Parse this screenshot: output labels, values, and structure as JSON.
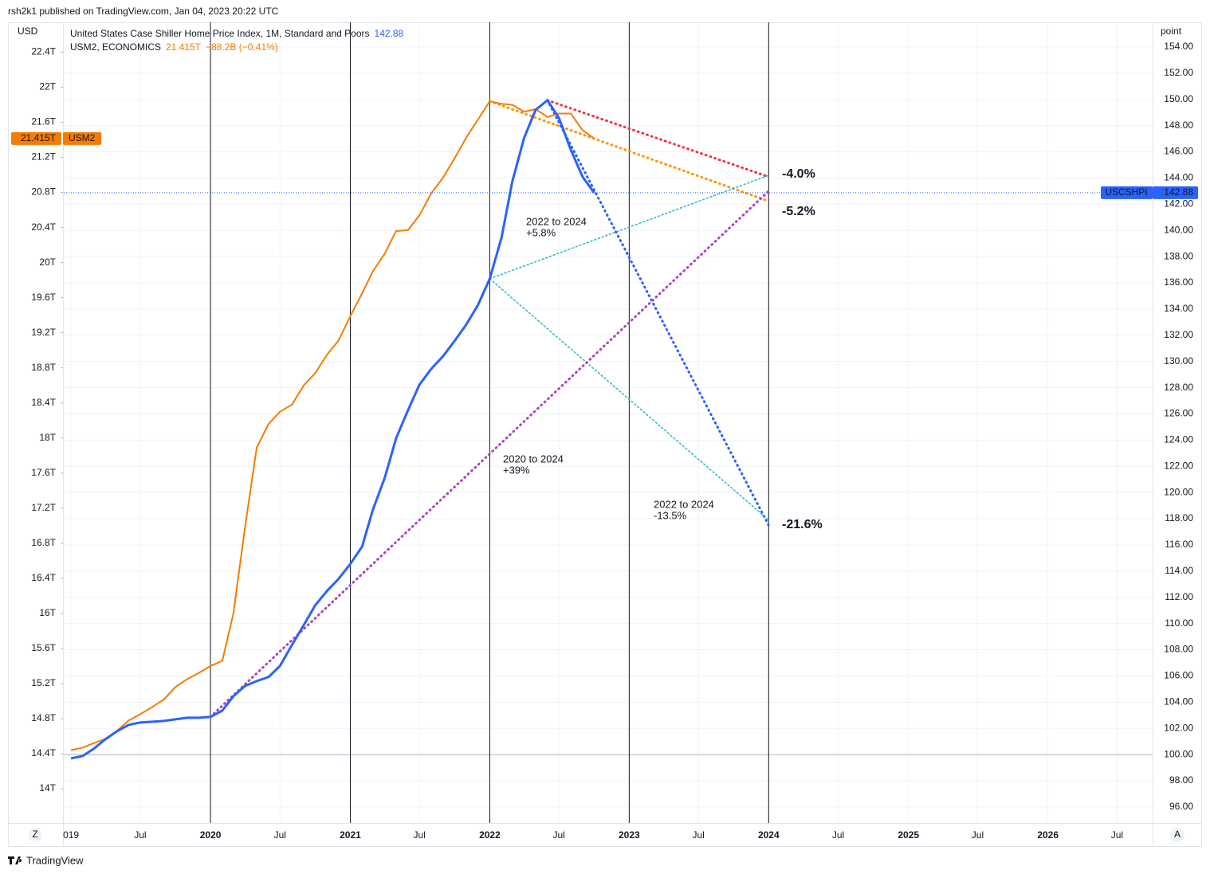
{
  "header": "rsh2k1 published on TradingView.com, Jan 04, 2023 20:22 UTC",
  "footer": "TradingView",
  "ui": {
    "left_button": "Z",
    "right_button": "A"
  },
  "chart_data": {
    "type": "line",
    "ylabel": "USD",
    "y2label": "point",
    "xlim": [
      "2018-12-13",
      "2026-10-02"
    ],
    "xticks": [
      {
        "value": "2019-01",
        "label": "019"
      },
      {
        "value": "2019-07",
        "label": "Jul"
      },
      {
        "value": "2020-01",
        "label": "2020"
      },
      {
        "value": "2020-07",
        "label": "Jul"
      },
      {
        "value": "2021-01",
        "label": "2021"
      },
      {
        "value": "2021-07",
        "label": "Jul"
      },
      {
        "value": "2022-01",
        "label": "2022"
      },
      {
        "value": "2022-07",
        "label": "Jul"
      },
      {
        "value": "2023-01",
        "label": "2023"
      },
      {
        "value": "2023-07",
        "label": "Jul"
      },
      {
        "value": "2024-01",
        "label": "2024"
      },
      {
        "value": "2024-07",
        "label": "Jul"
      },
      {
        "value": "2025-01",
        "label": "2025"
      },
      {
        "value": "2025-07",
        "label": "Jul"
      },
      {
        "value": "2026-01",
        "label": "2026"
      },
      {
        "value": "2026-07",
        "label": "Jul"
      }
    ],
    "ylim": [
      13.61,
      22.74
    ],
    "yticks": [
      {
        "value": 14,
        "label": "14T"
      },
      {
        "value": 14.4,
        "label": "14.4T"
      },
      {
        "value": 14.8,
        "label": "14.8T"
      },
      {
        "value": 15.2,
        "label": "15.2T"
      },
      {
        "value": 15.6,
        "label": "15.6T"
      },
      {
        "value": 16,
        "label": "16T"
      },
      {
        "value": 16.4,
        "label": "16.4T"
      },
      {
        "value": 16.8,
        "label": "16.8T"
      },
      {
        "value": 17.2,
        "label": "17.2T"
      },
      {
        "value": 17.6,
        "label": "17.6T"
      },
      {
        "value": 18,
        "label": "18T"
      },
      {
        "value": 18.4,
        "label": "18.4T"
      },
      {
        "value": 18.8,
        "label": "18.8T"
      },
      {
        "value": 19.2,
        "label": "19.2T"
      },
      {
        "value": 19.6,
        "label": "19.6T"
      },
      {
        "value": 20,
        "label": "20T"
      },
      {
        "value": 20.4,
        "label": "20.4T"
      },
      {
        "value": 20.8,
        "label": "20.8T"
      },
      {
        "value": 21.2,
        "label": "21.2T"
      },
      {
        "value": 21.6,
        "label": "21.6T"
      },
      {
        "value": 22,
        "label": "22T"
      },
      {
        "value": 22.4,
        "label": "22.4T"
      }
    ],
    "y2lim": [
      94.78,
      155.88
    ],
    "y2ticks": [
      {
        "value": 96,
        "label": "96.00"
      },
      {
        "value": 98,
        "label": "98.00"
      },
      {
        "value": 100,
        "label": "100.00"
      },
      {
        "value": 102,
        "label": "102.00"
      },
      {
        "value": 104,
        "label": "104.00"
      },
      {
        "value": 106,
        "label": "106.00"
      },
      {
        "value": 108,
        "label": "108.00"
      },
      {
        "value": 110,
        "label": "110.00"
      },
      {
        "value": 112,
        "label": "112.00"
      },
      {
        "value": 114,
        "label": "114.00"
      },
      {
        "value": 116,
        "label": "116.00"
      },
      {
        "value": 118,
        "label": "118.00"
      },
      {
        "value": 120,
        "label": "120.00"
      },
      {
        "value": 122,
        "label": "122.00"
      },
      {
        "value": 124,
        "label": "124.00"
      },
      {
        "value": 126,
        "label": "126.00"
      },
      {
        "value": 128,
        "label": "128.00"
      },
      {
        "value": 130,
        "label": "130.00"
      },
      {
        "value": 132,
        "label": "132.00"
      },
      {
        "value": 134,
        "label": "134.00"
      },
      {
        "value": 136,
        "label": "136.00"
      },
      {
        "value": 138,
        "label": "138.00"
      },
      {
        "value": 140,
        "label": "140.00"
      },
      {
        "value": 142,
        "label": "142.00"
      },
      {
        "value": 144,
        "label": "144.00"
      },
      {
        "value": 146,
        "label": "146.00"
      },
      {
        "value": 148,
        "label": "148.00"
      },
      {
        "value": 150,
        "label": "150.00"
      },
      {
        "value": 152,
        "label": "152.00"
      },
      {
        "value": 154,
        "label": "154.00"
      }
    ],
    "grid": true,
    "y2_baseline": 100,
    "vertical_lines": [
      "2020-01",
      "2021-01",
      "2022-01",
      "2023-01",
      "2024-01"
    ],
    "x": [
      "2019-01",
      "2019-02",
      "2019-03",
      "2019-04",
      "2019-05",
      "2019-06",
      "2019-07",
      "2019-08",
      "2019-09",
      "2019-10",
      "2019-11",
      "2019-12",
      "2020-01",
      "2020-02",
      "2020-03",
      "2020-04",
      "2020-05",
      "2020-06",
      "2020-07",
      "2020-08",
      "2020-09",
      "2020-10",
      "2020-11",
      "2020-12",
      "2021-01",
      "2021-02",
      "2021-03",
      "2021-04",
      "2021-05",
      "2021-06",
      "2021-07",
      "2021-08",
      "2021-09",
      "2021-10",
      "2021-11",
      "2021-12",
      "2022-01",
      "2022-02",
      "2022-03",
      "2022-04",
      "2022-05",
      "2022-06",
      "2022-07",
      "2022-08",
      "2022-09",
      "2022-10"
    ],
    "series": [
      {
        "name": "USM2",
        "description": "USM2, ECONOMICS",
        "color": "#f57c00",
        "axis": "y",
        "last_label": "21.415T",
        "change": "−88.2B (−0.41%)",
        "values": [
          14.44,
          14.47,
          14.52,
          14.57,
          14.66,
          14.78,
          14.85,
          14.93,
          15.02,
          15.16,
          15.25,
          15.32,
          15.4,
          15.46,
          16.0,
          17.0,
          17.89,
          18.16,
          18.3,
          18.38,
          18.6,
          18.74,
          18.95,
          19.11,
          19.39,
          19.65,
          19.9,
          20.1,
          20.36,
          20.37,
          20.54,
          20.79,
          20.97,
          21.19,
          21.43,
          21.63,
          21.84,
          21.81,
          21.8,
          21.72,
          21.75,
          21.66,
          21.7,
          21.7,
          21.51,
          21.415
        ]
      },
      {
        "name": "USCSHPI",
        "description": "United States Case Shiller Home Price Index, 1M, Standard and Poors",
        "color": "#2962ff",
        "axis": "y2",
        "values": [
          99.71,
          99.9,
          100.44,
          101.17,
          101.78,
          102.27,
          102.45,
          102.51,
          102.57,
          102.69,
          102.81,
          102.81,
          102.88,
          103.36,
          104.46,
          105.25,
          105.61,
          105.92,
          106.77,
          108.35,
          109.87,
          111.39,
          112.49,
          113.4,
          114.55,
          115.88,
          118.68,
          121.11,
          124.15,
          126.28,
          128.23,
          129.44,
          130.41,
          131.57,
          132.84,
          134.3,
          136.31,
          139.47,
          143.73,
          147.07,
          149.2,
          149.93,
          148.59,
          146.16,
          144.09,
          142.88
        ]
      }
    ],
    "drawings": [
      {
        "color": "#f23645",
        "axis": "y2",
        "x": [
          "2022-06",
          "2024-01"
        ],
        "values": [
          149.93,
          144.09
        ]
      },
      {
        "color": "#ff9800",
        "axis": "y",
        "x": [
          "2022-01",
          "2024-01"
        ],
        "values": [
          21.84,
          20.7
        ]
      },
      {
        "color": "#2962ff",
        "axis": "y2",
        "x": [
          "2022-06",
          "2024-01"
        ],
        "values": [
          149.93,
          117.5
        ]
      },
      {
        "color": "#26b8c9",
        "axis": "y2",
        "x": [
          "2022-01",
          "2024-01"
        ],
        "values": [
          136.31,
          144.2
        ]
      },
      {
        "color": "#26b8c9",
        "axis": "y2",
        "x": [
          "2022-01",
          "2024-01"
        ],
        "values": [
          136.31,
          117.9
        ]
      },
      {
        "color": "#ab47bc",
        "axis": "y2",
        "x": [
          "2020-01",
          "2024-01"
        ],
        "values": [
          102.88,
          143.0
        ]
      }
    ],
    "annotations": [
      {
        "text": "2022 to 2024",
        "color": "#26b8c9"
      },
      {
        "text": "+5.8%",
        "color": "#26b8c9"
      },
      {
        "text": "2020 to 2024",
        "color": "#9c27b0"
      },
      {
        "text": "+39%",
        "color": "#9c27b0"
      },
      {
        "text": "2022 to 2024",
        "color": "#26b8c9"
      },
      {
        "text": "-13.5%",
        "color": "#26b8c9"
      },
      {
        "text": "-4.0%",
        "color": "#2962ff"
      },
      {
        "text": "-5.2%",
        "color": "#ff9800"
      },
      {
        "text": "-21.6%",
        "color": "#2962ff"
      }
    ]
  }
}
